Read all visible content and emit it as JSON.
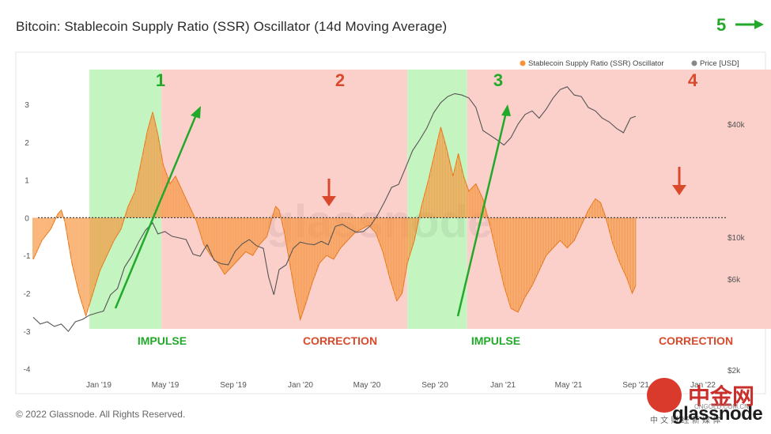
{
  "title": "Bitcoin: Stablecoin Supply Ratio (SSR) Oscillator (14d Moving Average)",
  "copyright": "© 2022 Glassnode. All Rights Reserved.",
  "logo": "glassnode",
  "watermark": "glassnode",
  "badge": {
    "text": "中金网",
    "subtext": "CNGOLD.COM.CN",
    "small": "中 文 财 经 新 媒 体"
  },
  "top_annotation": {
    "label": "5",
    "color": "#22a82a"
  },
  "chart_data": {
    "type": "bar",
    "title": "Bitcoin: Stablecoin Supply Ratio (SSR) Oscillator (14d Moving Average)",
    "legend": [
      {
        "label": "Stablecoin Supply Ratio (SSR) Oscillator",
        "color": "#f7923a"
      },
      {
        "label": "Price [USD]",
        "color": "#888888"
      }
    ],
    "legend_position": "top-right",
    "x_ticks": [
      "Jan '19",
      "May '19",
      "Sep '19",
      "Jan '20",
      "May '20",
      "Sep '20",
      "Jan '21",
      "May '21",
      "Sep '21",
      "Jan '22"
    ],
    "y_left": {
      "ticks": [
        3,
        2,
        1,
        0,
        -1,
        -2,
        -3,
        -4
      ],
      "ylim": [
        -4,
        4
      ]
    },
    "y_right": {
      "ticks": [
        "$40k",
        "$10k",
        "$6k",
        "$2k"
      ],
      "scale": "log"
    },
    "x_range": [
      0,
      42
    ],
    "phases": [
      {
        "label": "1",
        "name": "IMPULSE",
        "type": "impulse",
        "start": 3.2,
        "end": 7.3
      },
      {
        "label": "2",
        "name": "CORRECTION",
        "type": "correction",
        "start": 7.3,
        "end": 21.3
      },
      {
        "label": "3",
        "name": "IMPULSE",
        "type": "impulse",
        "start": 21.3,
        "end": 24.7
      },
      {
        "label": "4",
        "name": "CORRECTION",
        "type": "correction",
        "start": 24.7,
        "end": 42
      }
    ],
    "phase_colors": {
      "impulse": "#c4f5c0",
      "correction": "#fbd0cb",
      "impulse_text": "#22a82a",
      "correction_text": "#d94a2c"
    },
    "series": [
      {
        "name": "Stablecoin Supply Ratio (SSR) Oscillator",
        "color": "#f7923a",
        "points": [
          [
            0,
            -1.1
          ],
          [
            0.5,
            -0.6
          ],
          [
            1,
            -0.3
          ],
          [
            1.4,
            0.1
          ],
          [
            1.6,
            0.2
          ],
          [
            1.8,
            -0.1
          ],
          [
            2.2,
            -1.2
          ],
          [
            2.6,
            -2.0
          ],
          [
            3.0,
            -2.6
          ],
          [
            3.4,
            -2.0
          ],
          [
            3.8,
            -1.4
          ],
          [
            4.2,
            -1.0
          ],
          [
            4.6,
            -0.6
          ],
          [
            5.0,
            -0.3
          ],
          [
            5.4,
            0.3
          ],
          [
            5.8,
            0.7
          ],
          [
            6.2,
            1.6
          ],
          [
            6.5,
            2.3
          ],
          [
            6.8,
            2.8
          ],
          [
            7.1,
            2.2
          ],
          [
            7.4,
            1.4
          ],
          [
            7.8,
            0.9
          ],
          [
            8.1,
            1.1
          ],
          [
            8.5,
            0.7
          ],
          [
            8.9,
            0.3
          ],
          [
            9.3,
            -0.1
          ],
          [
            9.7,
            -0.7
          ],
          [
            10.1,
            -1.0
          ],
          [
            10.5,
            -1.2
          ],
          [
            10.9,
            -1.5
          ],
          [
            11.3,
            -1.3
          ],
          [
            11.7,
            -1.1
          ],
          [
            12.1,
            -0.9
          ],
          [
            12.5,
            -1.0
          ],
          [
            12.9,
            -0.7
          ],
          [
            13.3,
            -0.5
          ],
          [
            13.6,
            0.0
          ],
          [
            13.8,
            0.3
          ],
          [
            14.0,
            0.2
          ],
          [
            14.3,
            -0.4
          ],
          [
            14.6,
            -1.2
          ],
          [
            14.9,
            -2.0
          ],
          [
            15.2,
            -2.7
          ],
          [
            15.5,
            -2.3
          ],
          [
            15.9,
            -1.7
          ],
          [
            16.3,
            -1.2
          ],
          [
            16.7,
            -1.0
          ],
          [
            17.1,
            -1.1
          ],
          [
            17.5,
            -0.8
          ],
          [
            17.9,
            -0.6
          ],
          [
            18.3,
            -0.4
          ],
          [
            18.7,
            -0.3
          ],
          [
            19.1,
            -0.2
          ],
          [
            19.5,
            -0.4
          ],
          [
            19.9,
            -0.9
          ],
          [
            20.3,
            -1.6
          ],
          [
            20.7,
            -2.2
          ],
          [
            21.0,
            -2.0
          ],
          [
            21.3,
            -1.2
          ],
          [
            21.7,
            -0.6
          ],
          [
            22.1,
            0.3
          ],
          [
            22.5,
            1.0
          ],
          [
            22.9,
            1.8
          ],
          [
            23.2,
            2.4
          ],
          [
            23.5,
            1.9
          ],
          [
            23.9,
            1.1
          ],
          [
            24.2,
            1.7
          ],
          [
            24.5,
            1.1
          ],
          [
            24.8,
            0.7
          ],
          [
            25.2,
            0.9
          ],
          [
            25.6,
            0.5
          ],
          [
            26.0,
            -0.2
          ],
          [
            26.4,
            -1.0
          ],
          [
            26.8,
            -1.8
          ],
          [
            27.2,
            -2.4
          ],
          [
            27.6,
            -2.5
          ],
          [
            28.0,
            -2.1
          ],
          [
            28.4,
            -1.8
          ],
          [
            28.8,
            -1.4
          ],
          [
            29.2,
            -1.0
          ],
          [
            29.6,
            -0.8
          ],
          [
            30.0,
            -0.6
          ],
          [
            30.4,
            -0.8
          ],
          [
            30.8,
            -0.6
          ],
          [
            31.2,
            -0.2
          ],
          [
            31.6,
            0.2
          ],
          [
            32.0,
            0.5
          ],
          [
            32.3,
            0.4
          ],
          [
            32.6,
            0.0
          ],
          [
            33.0,
            -0.7
          ],
          [
            33.4,
            -1.2
          ],
          [
            33.8,
            -1.6
          ],
          [
            34.1,
            -2.0
          ],
          [
            34.3,
            -1.8
          ]
        ]
      },
      {
        "name": "Price [USD]",
        "color": "#888888",
        "points": [
          [
            0,
            3800
          ],
          [
            0.4,
            3500
          ],
          [
            0.8,
            3600
          ],
          [
            1.2,
            3400
          ],
          [
            1.6,
            3500
          ],
          [
            2.0,
            3200
          ],
          [
            2.4,
            3600
          ],
          [
            2.8,
            3700
          ],
          [
            3.2,
            3900
          ],
          [
            3.6,
            4000
          ],
          [
            4.0,
            4100
          ],
          [
            4.4,
            5000
          ],
          [
            4.8,
            5400
          ],
          [
            5.2,
            7000
          ],
          [
            5.6,
            8000
          ],
          [
            6.0,
            9500
          ],
          [
            6.4,
            11000
          ],
          [
            6.8,
            12000
          ],
          [
            7.1,
            10500
          ],
          [
            7.5,
            10800
          ],
          [
            7.9,
            10200
          ],
          [
            8.3,
            10000
          ],
          [
            8.7,
            9800
          ],
          [
            9.1,
            8200
          ],
          [
            9.5,
            8000
          ],
          [
            9.9,
            9200
          ],
          [
            10.3,
            7600
          ],
          [
            10.7,
            7300
          ],
          [
            11.1,
            7200
          ],
          [
            11.5,
            8500
          ],
          [
            11.9,
            9300
          ],
          [
            12.3,
            9800
          ],
          [
            12.7,
            9100
          ],
          [
            13.1,
            8800
          ],
          [
            13.4,
            6200
          ],
          [
            13.7,
            5000
          ],
          [
            14.0,
            6800
          ],
          [
            14.4,
            7200
          ],
          [
            14.8,
            8800
          ],
          [
            15.2,
            9500
          ],
          [
            15.6,
            9300
          ],
          [
            16.0,
            9200
          ],
          [
            16.4,
            9600
          ],
          [
            16.8,
            9200
          ],
          [
            17.2,
            11500
          ],
          [
            17.6,
            11800
          ],
          [
            18.0,
            11200
          ],
          [
            18.4,
            10700
          ],
          [
            18.8,
            10800
          ],
          [
            19.2,
            11600
          ],
          [
            19.6,
            13200
          ],
          [
            20.0,
            15500
          ],
          [
            20.4,
            18500
          ],
          [
            20.8,
            19200
          ],
          [
            21.2,
            23500
          ],
          [
            21.6,
            29000
          ],
          [
            22.0,
            33000
          ],
          [
            22.4,
            38000
          ],
          [
            22.8,
            46000
          ],
          [
            23.2,
            52000
          ],
          [
            23.6,
            56000
          ],
          [
            24.0,
            58000
          ],
          [
            24.4,
            57000
          ],
          [
            24.8,
            55000
          ],
          [
            25.2,
            49000
          ],
          [
            25.6,
            37000
          ],
          [
            26.0,
            35000
          ],
          [
            26.4,
            33000
          ],
          [
            26.8,
            31000
          ],
          [
            27.2,
            34000
          ],
          [
            27.6,
            40000
          ],
          [
            28.0,
            45000
          ],
          [
            28.4,
            47000
          ],
          [
            28.8,
            43000
          ],
          [
            29.2,
            48000
          ],
          [
            29.6,
            55000
          ],
          [
            30.0,
            61000
          ],
          [
            30.4,
            63000
          ],
          [
            30.8,
            57000
          ],
          [
            31.2,
            56000
          ],
          [
            31.6,
            49000
          ],
          [
            32.0,
            47000
          ],
          [
            32.4,
            43000
          ],
          [
            32.8,
            41000
          ],
          [
            33.2,
            38000
          ],
          [
            33.6,
            36000
          ],
          [
            34.0,
            43000
          ],
          [
            34.3,
            44000
          ]
        ]
      }
    ]
  }
}
